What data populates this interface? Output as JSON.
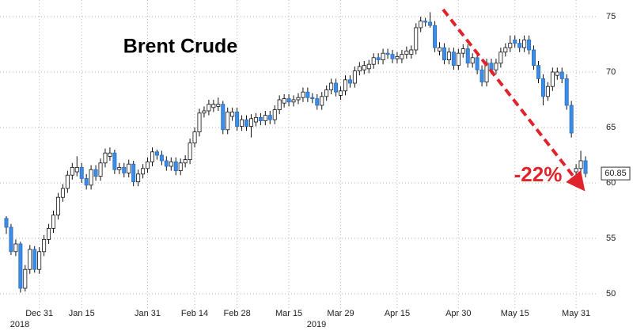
{
  "chart_data": {
    "type": "candlestick",
    "title": "Brent Crude",
    "annotation": "-22%",
    "last_price": 60.85,
    "year_labels": [
      "2018",
      "2019"
    ],
    "up_color": "#ffffff",
    "down_color": "#3b8de6",
    "annotation_color": "#e0242b",
    "grid": true,
    "ylim": [
      48.5,
      76.5
    ],
    "yticks": [
      50,
      55,
      60,
      65,
      70,
      75
    ],
    "categories": [
      null,
      null,
      null,
      null,
      null,
      null,
      null,
      "Dec 31",
      null,
      null,
      null,
      null,
      null,
      null,
      null,
      null,
      "Jan 15",
      null,
      null,
      null,
      null,
      null,
      null,
      null,
      null,
      null,
      null,
      null,
      null,
      null,
      "Jan 31",
      null,
      null,
      null,
      null,
      null,
      null,
      null,
      null,
      null,
      "Feb 14",
      null,
      null,
      null,
      null,
      null,
      null,
      null,
      null,
      "Feb 28",
      null,
      null,
      null,
      null,
      null,
      null,
      null,
      null,
      null,
      null,
      "Mar 15",
      null,
      null,
      null,
      null,
      null,
      null,
      null,
      null,
      null,
      null,
      "Mar 29",
      null,
      null,
      null,
      null,
      null,
      null,
      null,
      null,
      null,
      null,
      null,
      "Apr 15",
      null,
      null,
      null,
      null,
      null,
      null,
      null,
      null,
      null,
      null,
      null,
      null,
      "Apr 30",
      null,
      null,
      null,
      null,
      null,
      null,
      null,
      null,
      null,
      null,
      null,
      "May 15",
      null,
      null,
      null,
      null,
      null,
      null,
      null,
      null,
      null,
      null,
      null,
      null,
      "May 31",
      null,
      null
    ],
    "ohlc": [
      [
        56.8,
        57.0,
        55.4,
        56.0
      ],
      [
        56.0,
        56.3,
        53.5,
        53.8
      ],
      [
        53.8,
        54.9,
        53.4,
        54.5
      ],
      [
        54.5,
        54.7,
        50.1,
        50.5
      ],
      [
        50.5,
        52.6,
        50.2,
        52.2
      ],
      [
        52.2,
        54.4,
        51.8,
        54.0
      ],
      [
        54.0,
        54.3,
        51.9,
        52.2
      ],
      [
        52.2,
        54.2,
        51.8,
        53.8
      ],
      [
        53.8,
        55.3,
        53.4,
        54.9
      ],
      [
        54.9,
        56.3,
        54.5,
        55.9
      ],
      [
        55.9,
        57.5,
        55.5,
        57.1
      ],
      [
        57.1,
        59.1,
        56.7,
        58.7
      ],
      [
        58.7,
        59.9,
        58.3,
        59.5
      ],
      [
        59.5,
        61.1,
        59.1,
        60.7
      ],
      [
        60.7,
        61.8,
        60.3,
        61.4
      ],
      [
        61.0,
        62.4,
        60.6,
        61.4
      ],
      [
        61.4,
        61.8,
        60.0,
        60.4
      ],
      [
        60.4,
        60.8,
        59.4,
        59.8
      ],
      [
        59.8,
        61.6,
        59.4,
        61.2
      ],
      [
        61.2,
        61.6,
        60.2,
        60.6
      ],
      [
        60.6,
        62.2,
        60.2,
        61.8
      ],
      [
        61.8,
        63.1,
        61.4,
        62.7
      ],
      [
        62.4,
        63.2,
        62.0,
        62.7
      ],
      [
        62.7,
        63.0,
        60.8,
        61.2
      ],
      [
        61.2,
        61.8,
        60.8,
        61.4
      ],
      [
        61.4,
        61.8,
        60.5,
        60.9
      ],
      [
        60.9,
        62.1,
        60.5,
        61.7
      ],
      [
        61.7,
        62.0,
        59.7,
        60.1
      ],
      [
        60.1,
        61.2,
        59.7,
        60.8
      ],
      [
        60.8,
        61.7,
        60.4,
        61.3
      ],
      [
        61.3,
        62.3,
        60.9,
        61.9
      ],
      [
        61.9,
        63.2,
        61.5,
        62.8
      ],
      [
        62.8,
        63.0,
        62.1,
        62.5
      ],
      [
        62.5,
        62.9,
        61.6,
        62.0
      ],
      [
        62.0,
        62.4,
        61.1,
        61.5
      ],
      [
        61.5,
        62.3,
        61.1,
        61.9
      ],
      [
        61.9,
        62.3,
        60.7,
        61.1
      ],
      [
        61.1,
        62.2,
        60.7,
        61.8
      ],
      [
        61.8,
        62.5,
        61.4,
        62.1
      ],
      [
        62.1,
        64.0,
        61.7,
        63.6
      ],
      [
        63.6,
        65.0,
        63.2,
        64.6
      ],
      [
        64.6,
        66.7,
        64.2,
        66.3
      ],
      [
        66.3,
        66.9,
        65.9,
        66.5
      ],
      [
        66.5,
        67.5,
        66.1,
        67.1
      ],
      [
        66.8,
        67.5,
        66.4,
        67.1
      ],
      [
        66.9,
        67.7,
        66.5,
        67.1
      ],
      [
        67.1,
        67.4,
        64.4,
        64.8
      ],
      [
        64.8,
        66.8,
        64.4,
        66.4
      ],
      [
        66.0,
        66.8,
        65.6,
        66.4
      ],
      [
        66.4,
        66.8,
        64.7,
        65.1
      ],
      [
        65.1,
        66.1,
        64.7,
        65.7
      ],
      [
        65.7,
        66.1,
        64.7,
        65.1
      ],
      [
        65.1,
        66.2,
        64.1,
        65.8
      ],
      [
        65.5,
        66.3,
        65.1,
        65.9
      ],
      [
        65.9,
        66.3,
        65.2,
        65.6
      ],
      [
        65.6,
        66.5,
        65.2,
        66.1
      ],
      [
        66.1,
        66.5,
        65.3,
        65.7
      ],
      [
        65.7,
        67.0,
        65.3,
        66.6
      ],
      [
        66.6,
        67.9,
        66.2,
        67.5
      ],
      [
        67.2,
        68.0,
        66.8,
        67.6
      ],
      [
        67.6,
        68.0,
        66.9,
        67.3
      ],
      [
        67.3,
        67.9,
        66.9,
        67.5
      ],
      [
        67.5,
        68.1,
        67.1,
        67.7
      ],
      [
        67.7,
        68.6,
        67.3,
        68.2
      ],
      [
        68.2,
        68.6,
        67.3,
        67.7
      ],
      [
        67.7,
        68.1,
        67.2,
        67.6
      ],
      [
        67.6,
        68.0,
        66.6,
        67.0
      ],
      [
        67.0,
        68.2,
        66.6,
        67.8
      ],
      [
        67.8,
        68.8,
        67.4,
        68.4
      ],
      [
        68.4,
        69.4,
        68.0,
        69.0
      ],
      [
        69.0,
        69.4,
        67.8,
        68.2
      ],
      [
        67.9,
        68.7,
        67.5,
        68.3
      ],
      [
        68.3,
        69.7,
        67.9,
        69.3
      ],
      [
        69.3,
        69.7,
        68.6,
        69.0
      ],
      [
        69.0,
        70.5,
        68.6,
        70.1
      ],
      [
        70.1,
        70.9,
        69.7,
        70.5
      ],
      [
        70.2,
        71.0,
        69.8,
        70.6
      ],
      [
        70.3,
        71.1,
        69.9,
        70.7
      ],
      [
        70.7,
        71.7,
        70.3,
        71.3
      ],
      [
        71.3,
        71.7,
        70.7,
        71.1
      ],
      [
        71.1,
        72.1,
        70.7,
        71.7
      ],
      [
        71.7,
        72.1,
        71.2,
        71.6
      ],
      [
        71.6,
        72.0,
        70.8,
        71.2
      ],
      [
        71.2,
        71.8,
        70.8,
        71.4
      ],
      [
        71.2,
        72.0,
        70.8,
        71.6
      ],
      [
        71.6,
        72.3,
        71.2,
        71.9
      ],
      [
        71.6,
        72.4,
        71.2,
        72.0
      ],
      [
        72.0,
        74.4,
        71.6,
        74.0
      ],
      [
        74.0,
        75.0,
        73.6,
        74.6
      ],
      [
        74.6,
        74.9,
        74.1,
        74.5
      ],
      [
        74.5,
        75.4,
        74.0,
        74.2
      ],
      [
        74.2,
        74.6,
        71.8,
        72.2
      ],
      [
        71.9,
        72.7,
        71.5,
        72.2
      ],
      [
        72.2,
        72.6,
        70.7,
        71.1
      ],
      [
        71.1,
        72.2,
        70.7,
        71.8
      ],
      [
        71.8,
        72.2,
        70.2,
        70.6
      ],
      [
        70.6,
        72.1,
        70.2,
        71.7
      ],
      [
        71.7,
        72.5,
        71.3,
        72.1
      ],
      [
        72.1,
        72.5,
        70.4,
        70.8
      ],
      [
        70.8,
        71.7,
        70.4,
        71.3
      ],
      [
        71.3,
        71.7,
        69.8,
        70.2
      ],
      [
        70.2,
        70.6,
        68.7,
        69.1
      ],
      [
        69.1,
        71.2,
        68.7,
        70.8
      ],
      [
        70.8,
        71.2,
        69.8,
        70.2
      ],
      [
        70.2,
        71.2,
        69.8,
        70.8
      ],
      [
        70.8,
        72.2,
        70.4,
        71.8
      ],
      [
        71.8,
        72.6,
        71.4,
        72.2
      ],
      [
        72.2,
        73.3,
        71.8,
        72.6
      ],
      [
        72.9,
        73.3,
        72.2,
        72.6
      ],
      [
        72.6,
        73.0,
        71.8,
        72.2
      ],
      [
        72.2,
        73.3,
        71.8,
        72.9
      ],
      [
        72.9,
        73.3,
        71.6,
        72.0
      ],
      [
        72.0,
        72.4,
        70.2,
        70.6
      ],
      [
        70.6,
        71.0,
        69.0,
        69.4
      ],
      [
        69.4,
        69.8,
        67.0,
        67.8
      ],
      [
        67.8,
        69.1,
        67.4,
        68.7
      ],
      [
        68.7,
        70.4,
        68.3,
        70.0
      ],
      [
        69.7,
        70.4,
        69.3,
        70.0
      ],
      [
        70.0,
        70.4,
        69.0,
        69.4
      ],
      [
        69.4,
        69.8,
        66.6,
        67.0
      ],
      [
        67.0,
        67.4,
        64.1,
        64.5
      ],
      [
        61.0,
        61.7,
        60.6,
        61.3
      ],
      [
        61.3,
        62.9,
        60.9,
        62.0
      ],
      [
        62.0,
        62.4,
        60.5,
        60.85
      ]
    ]
  }
}
